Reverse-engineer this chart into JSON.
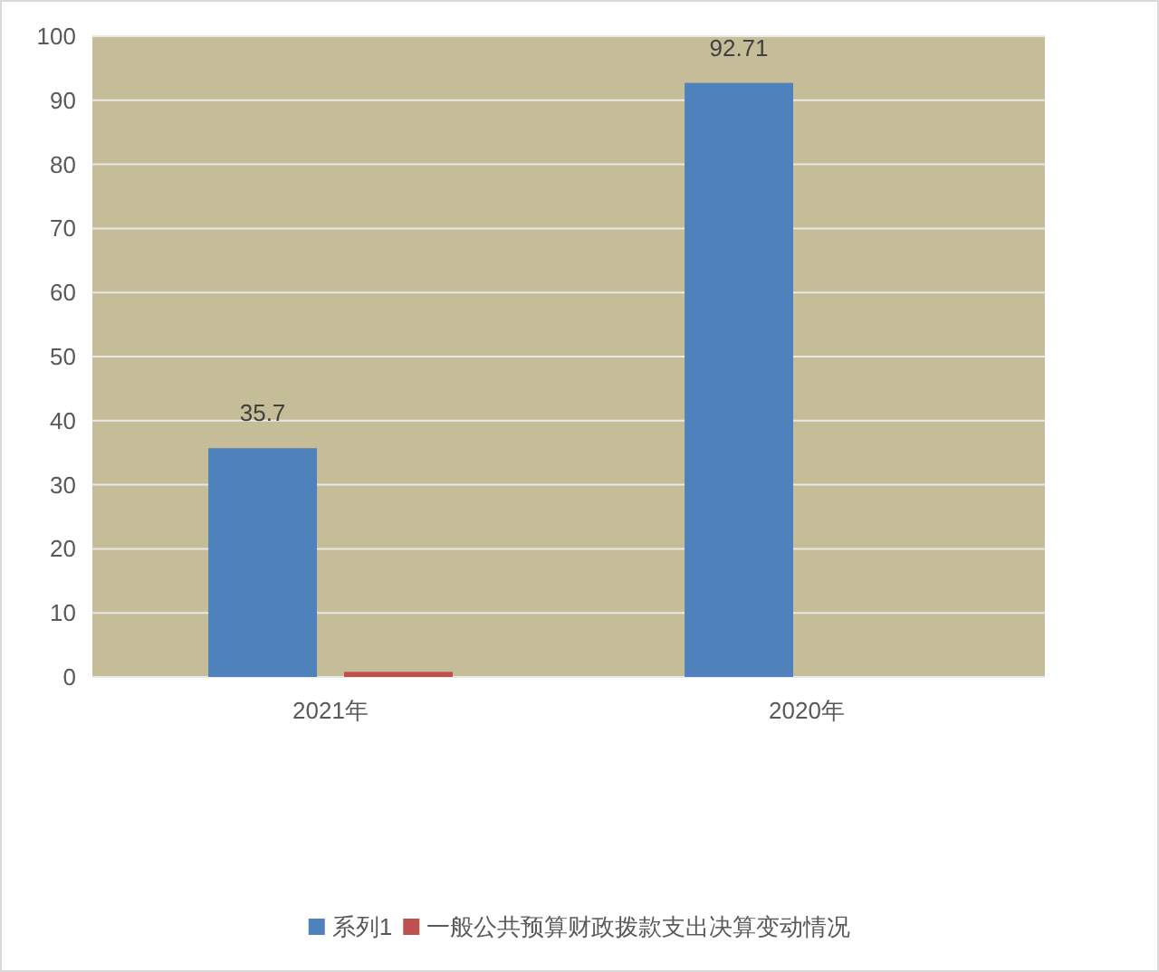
{
  "chart_data": {
    "type": "bar",
    "categories": [
      "2021年",
      "2020年"
    ],
    "series": [
      {
        "name": "系列1",
        "color": "#4f81bd",
        "values": [
          35.7,
          92.71
        ],
        "value_labels": [
          "35.7",
          "92.71"
        ]
      },
      {
        "name": "一般公共预算财政拨款支出决算变动情况",
        "color": "#c0504d",
        "values": [
          0.8,
          null
        ]
      }
    ],
    "ylim": [
      0,
      100
    ],
    "yticks": [
      0,
      10,
      20,
      30,
      40,
      50,
      60,
      70,
      80,
      90,
      100
    ],
    "grid": "y",
    "legend": "bottom"
  }
}
